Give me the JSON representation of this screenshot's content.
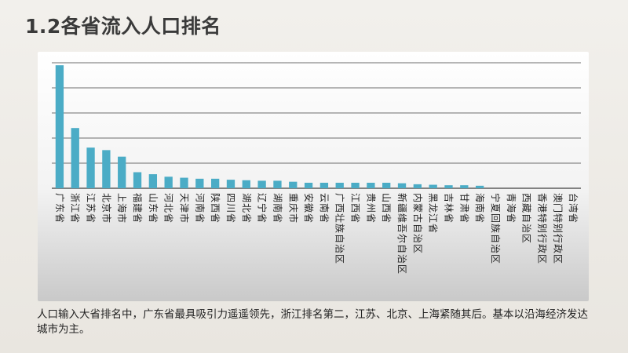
{
  "title": "1.2各省流入人口排名",
  "caption": "人口输入大省排名中，广东省最具吸引力遥遥领先，浙江排名第二，江苏、北京、上海紧随其后。基本以沿海经济发达城市为主。",
  "colors": {
    "bar": "#4bacc6",
    "grid": "#3f3f3f",
    "text": "#222222"
  },
  "chart_data": {
    "type": "bar",
    "title": "",
    "xlabel": "",
    "ylabel": "",
    "ylim": [
      0,
      25
    ],
    "y_gridlines": [
      0,
      5,
      10,
      15,
      20,
      25
    ],
    "y_tick_labels_shown": false,
    "grid": true,
    "categories": [
      "广东省",
      "浙江省",
      "江苏省",
      "北京市",
      "上海市",
      "福建省",
      "山东省",
      "河北省",
      "天津市",
      "河南省",
      "陕西省",
      "四川省",
      "湖北省",
      "辽宁省",
      "湖南省",
      "重庆市",
      "安徽省",
      "云南省",
      "广西壮族自治区",
      "江西省",
      "贵州省",
      "山西省",
      "新疆维吾尔自治区",
      "内蒙古自治区",
      "黑龙江省",
      "吉林省",
      "甘肃省",
      "海南省",
      "宁夏回族自治区",
      "青海省",
      "西藏自治区",
      "香港特别行政区",
      "澳门特别行政区",
      "台湾省"
    ],
    "values": [
      24.5,
      12.0,
      8.1,
      7.6,
      6.3,
      3.2,
      2.8,
      2.3,
      2.1,
      1.9,
      1.9,
      1.7,
      1.6,
      1.5,
      1.5,
      1.3,
      1.1,
      1.1,
      1.1,
      1.1,
      1.1,
      1.1,
      1.0,
      0.8,
      0.7,
      0.6,
      0.6,
      0.5,
      0,
      0,
      0,
      0,
      0,
      0
    ]
  }
}
